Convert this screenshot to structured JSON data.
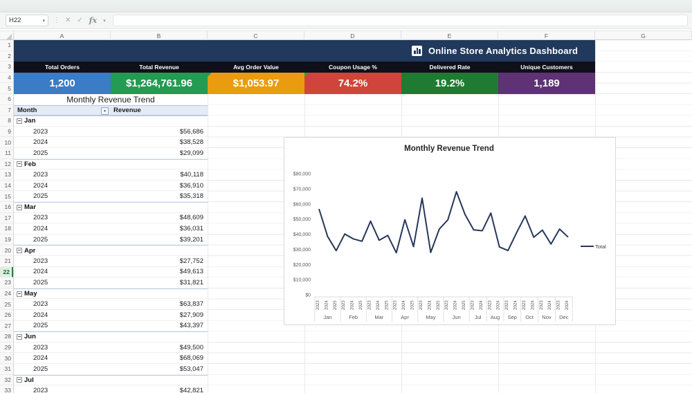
{
  "chrome": {
    "name_box": "H22",
    "fx_label": "fx",
    "formula_value": "",
    "columns": [
      "A",
      "B",
      "C",
      "D",
      "E",
      "F",
      "G"
    ],
    "selected_row": 22,
    "row_count": 33
  },
  "dashboard": {
    "title": "Online Store Analytics Dashboard",
    "kpis": [
      {
        "label": "Total Orders",
        "value": "1,200",
        "color": "#3a7cc5",
        "flag": false
      },
      {
        "label": "Total Revenue",
        "value": "$1,264,761.96",
        "color": "#239b52",
        "flag": false
      },
      {
        "label": "Avg Order Value",
        "value": "$1,053.97",
        "color": "#e99c10",
        "flag": true
      },
      {
        "label": "Coupon Usage %",
        "value": "74.2%",
        "color": "#d0453b",
        "flag": true
      },
      {
        "label": "Delivered Rate",
        "value": "19.2%",
        "color": "#1f7b31",
        "flag": false
      },
      {
        "label": "Unique Customers",
        "value": "1,189",
        "color": "#5f3175",
        "flag": false
      }
    ]
  },
  "pivot": {
    "title": "Monthly Revenue Trend",
    "col_month": "Month",
    "col_revenue": "Revenue",
    "groups": [
      {
        "month": "Jan",
        "rows": [
          {
            "year": "2023",
            "revenue": "$56,686"
          },
          {
            "year": "2024",
            "revenue": "$38,528"
          },
          {
            "year": "2025",
            "revenue": "$29,099"
          }
        ]
      },
      {
        "month": "Feb",
        "rows": [
          {
            "year": "2023",
            "revenue": "$40,118"
          },
          {
            "year": "2024",
            "revenue": "$36,910"
          },
          {
            "year": "2025",
            "revenue": "$35,318"
          }
        ]
      },
      {
        "month": "Mar",
        "rows": [
          {
            "year": "2023",
            "revenue": "$48,609"
          },
          {
            "year": "2024",
            "revenue": "$36,031"
          },
          {
            "year": "2025",
            "revenue": "$39,201"
          }
        ]
      },
      {
        "month": "Apr",
        "rows": [
          {
            "year": "2023",
            "revenue": "$27,752"
          },
          {
            "year": "2024",
            "revenue": "$49,613"
          },
          {
            "year": "2025",
            "revenue": "$31,821"
          }
        ]
      },
      {
        "month": "May",
        "rows": [
          {
            "year": "2023",
            "revenue": "$63,837"
          },
          {
            "year": "2024",
            "revenue": "$27,909"
          },
          {
            "year": "2025",
            "revenue": "$43,397"
          }
        ]
      },
      {
        "month": "Jun",
        "rows": [
          {
            "year": "2023",
            "revenue": "$49,500"
          },
          {
            "year": "2024",
            "revenue": "$68,069"
          },
          {
            "year": "2025",
            "revenue": "$53,047"
          }
        ]
      },
      {
        "month": "Jul",
        "rows": [
          {
            "year": "2023",
            "revenue": "$42,821"
          }
        ]
      }
    ]
  },
  "chart_data": {
    "type": "line",
    "title": "Monthly Revenue Trend",
    "legend_position": "right",
    "grid": false,
    "ylim": [
      0,
      80000
    ],
    "ylabels": [
      "$0",
      "$10,000",
      "$20,000",
      "$30,000",
      "$40,000",
      "$50,000",
      "$60,000",
      "$70,000",
      "$80,000"
    ],
    "categories": [
      {
        "month": "Jan",
        "years": [
          "2023",
          "2024",
          "2025"
        ]
      },
      {
        "month": "Feb",
        "years": [
          "2023",
          "2024",
          "2025"
        ]
      },
      {
        "month": "Mar",
        "years": [
          "2023",
          "2024",
          "2025"
        ]
      },
      {
        "month": "Apr",
        "years": [
          "2023",
          "2024",
          "2025"
        ]
      },
      {
        "month": "May",
        "years": [
          "2023",
          "2024",
          "2025"
        ]
      },
      {
        "month": "Jun",
        "years": [
          "2023",
          "2024",
          "2025"
        ]
      },
      {
        "month": "Jul",
        "years": [
          "2023",
          "2024"
        ]
      },
      {
        "month": "Aug",
        "years": [
          "2023",
          "2024"
        ]
      },
      {
        "month": "Sep",
        "years": [
          "2023",
          "2024"
        ]
      },
      {
        "month": "Oct",
        "years": [
          "2023",
          "2024"
        ]
      },
      {
        "month": "Nov",
        "years": [
          "2023",
          "2024"
        ]
      },
      {
        "month": "Dec",
        "years": [
          "2023",
          "2024"
        ]
      }
    ],
    "series": [
      {
        "name": "Total",
        "color": "#26365a",
        "values": [
          56686,
          38528,
          29099,
          40118,
          36910,
          35318,
          48609,
          36031,
          39201,
          27752,
          49613,
          31821,
          63837,
          27909,
          43397,
          49500,
          68069,
          53047,
          42821,
          42300,
          54000,
          31600,
          29200,
          41000,
          52000,
          38000,
          42700,
          33500,
          43400,
          38100
        ]
      }
    ]
  }
}
